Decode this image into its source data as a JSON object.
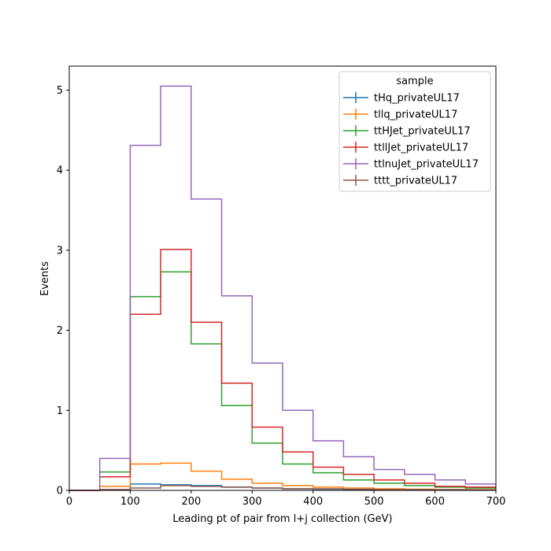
{
  "chart_data": {
    "type": "line",
    "title": "",
    "xlabel": "Leading pt of pair from l+j collection (GeV)",
    "ylabel": "Events",
    "xlim": [
      0,
      700
    ],
    "ylim": [
      0,
      5.3
    ],
    "grid": false,
    "legend_placement": "top-right",
    "legend_title": "sample",
    "x_ticks": [
      0,
      100,
      200,
      300,
      400,
      500,
      600,
      700
    ],
    "y_ticks": [
      0,
      1,
      2,
      3,
      4,
      5
    ],
    "x_tick_labels": [
      "0",
      "100",
      "200",
      "300",
      "400",
      "500",
      "600",
      "700"
    ],
    "y_tick_labels": [
      "0",
      "1",
      "2",
      "3",
      "4",
      "5"
    ],
    "bin_edges": [
      0,
      50,
      100,
      150,
      200,
      250,
      300,
      350,
      400,
      450,
      500,
      550,
      600,
      650,
      700
    ],
    "series": [
      {
        "name": "tHq_privateUL17",
        "color": "#1f77b4",
        "values": [
          0,
          0.01,
          0.08,
          0.07,
          0.06,
          0.04,
          0.03,
          0.02,
          0.015,
          0.01,
          0.008,
          0.005,
          0.004,
          0.003
        ]
      },
      {
        "name": "tllq_privateUL17",
        "color": "#ff7f0e",
        "values": [
          0,
          0.05,
          0.33,
          0.34,
          0.24,
          0.14,
          0.09,
          0.06,
          0.04,
          0.03,
          0.02,
          0.015,
          0.01,
          0.01
        ]
      },
      {
        "name": "ttHJet_privateUL17",
        "color": "#2ca02c",
        "values": [
          0,
          0.23,
          2.42,
          2.73,
          1.83,
          1.06,
          0.59,
          0.33,
          0.22,
          0.13,
          0.09,
          0.06,
          0.04,
          0.03
        ]
      },
      {
        "name": "ttllJet_privateUL17",
        "color": "#d62728",
        "values": [
          0,
          0.17,
          2.2,
          3.01,
          2.1,
          1.34,
          0.79,
          0.48,
          0.29,
          0.2,
          0.13,
          0.09,
          0.05,
          0.04
        ]
      },
      {
        "name": "ttlnuJet_privateUL17",
        "color": "#9467bd",
        "values": [
          0,
          0.4,
          4.31,
          5.05,
          3.64,
          2.43,
          1.59,
          1.0,
          0.62,
          0.42,
          0.26,
          0.2,
          0.13,
          0.08
        ]
      },
      {
        "name": "tttt_privateUL17",
        "color": "#8c564b",
        "values": [
          0,
          0.01,
          0.03,
          0.06,
          0.05,
          0.04,
          0.03,
          0.02,
          0.02,
          0.015,
          0.01,
          0.01,
          0.008,
          0.006
        ]
      }
    ]
  }
}
